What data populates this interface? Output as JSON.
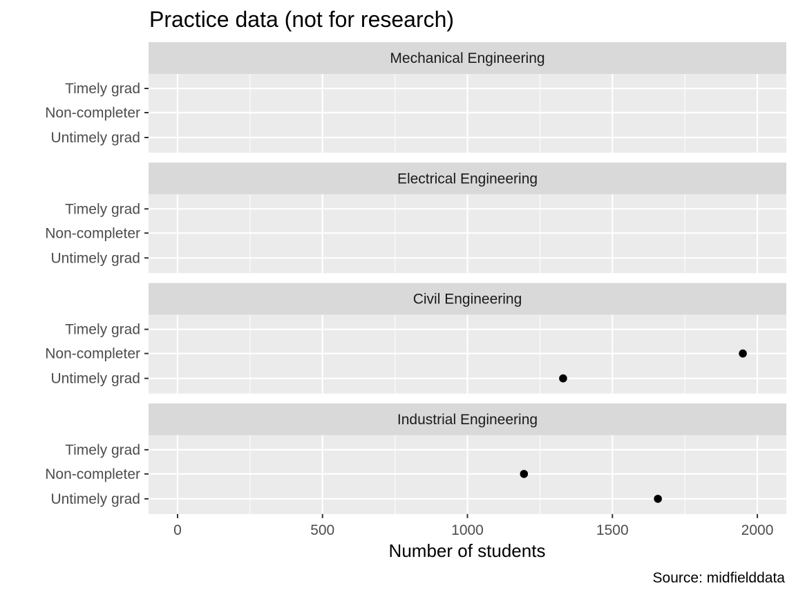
{
  "chart_data": {
    "type": "scatter",
    "title": "Practice data (not for research)",
    "xlabel": "Number of students",
    "ylabel": "",
    "caption": "Source: midfielddata",
    "xlim": [
      -100,
      2100
    ],
    "x_ticks": [
      0,
      500,
      1000,
      1500,
      2000
    ],
    "y_categories": [
      "Timely grad",
      "Non-completer",
      "Untimely grad"
    ],
    "panels": [
      {
        "name": "Mechanical Engineering",
        "points": []
      },
      {
        "name": "Electrical Engineering",
        "points": []
      },
      {
        "name": "Civil Engineering",
        "points": [
          {
            "category": "Non-completer",
            "x": 1950
          },
          {
            "category": "Untimely grad",
            "x": 1330
          }
        ]
      },
      {
        "name": "Industrial Engineering",
        "points": [
          {
            "category": "Non-completer",
            "x": 1195
          },
          {
            "category": "Untimely grad",
            "x": 1657
          }
        ]
      }
    ],
    "grid": true,
    "legend": "none",
    "colors": {
      "panel_bg": "#ebebeb",
      "strip_bg": "#d9d9d9",
      "grid_major": "#ffffff",
      "point": "#000000"
    }
  }
}
